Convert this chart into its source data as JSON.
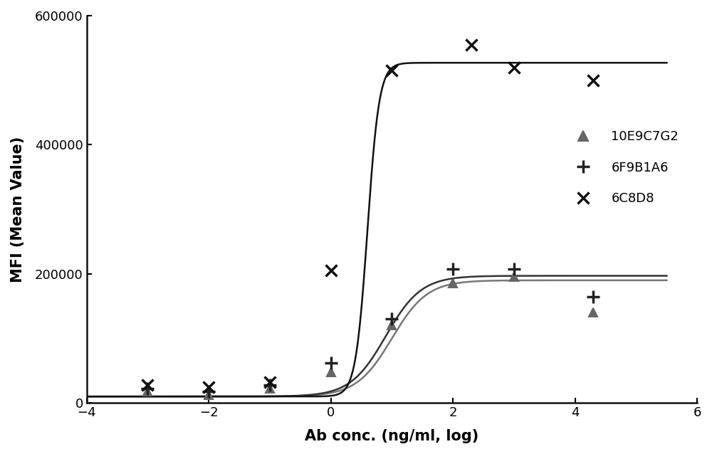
{
  "title": "",
  "xlabel": "Ab conc. (ng/ml, log)",
  "ylabel": "MFI (Mean Value)",
  "xlim": [
    -4,
    6
  ],
  "ylim": [
    0,
    600000
  ],
  "yticks": [
    0,
    200000,
    400000,
    600000
  ],
  "xticks": [
    -4,
    -2,
    0,
    2,
    4,
    6
  ],
  "background_color": "#ffffff",
  "series": [
    {
      "name": "10E9C7G2",
      "marker": "^",
      "color": "#666666",
      "data_x": [
        -3.0,
        -2.0,
        -1.0,
        0.0,
        1.0,
        2.0,
        3.0,
        4.3
      ],
      "data_y": [
        18000,
        12000,
        22000,
        48000,
        120000,
        185000,
        195000,
        140000
      ],
      "curve_params": {
        "bottom": 10000,
        "top": 190000,
        "ec50": 1.0,
        "hillslope": 1.5
      }
    },
    {
      "name": "6F9B1A6",
      "marker": "+",
      "color": "#222222",
      "data_x": [
        -3.0,
        -2.0,
        -1.0,
        0.0,
        1.0,
        2.0,
        3.0,
        4.3
      ],
      "data_y": [
        22000,
        18000,
        28000,
        62000,
        130000,
        207000,
        208000,
        165000
      ],
      "curve_params": {
        "bottom": 10000,
        "top": 197000,
        "ec50": 0.9,
        "hillslope": 1.5
      }
    },
    {
      "name": "6C8D8",
      "marker": "x",
      "color": "#111111",
      "data_x": [
        -3.0,
        -2.0,
        -1.0,
        0.0,
        1.0,
        2.3,
        3.0,
        4.3
      ],
      "data_y": [
        28000,
        25000,
        32000,
        205000,
        515000,
        555000,
        520000,
        500000
      ],
      "curve_params": {
        "bottom": 10000,
        "top": 527000,
        "ec50": 0.6,
        "hillslope": 4.5
      }
    }
  ]
}
